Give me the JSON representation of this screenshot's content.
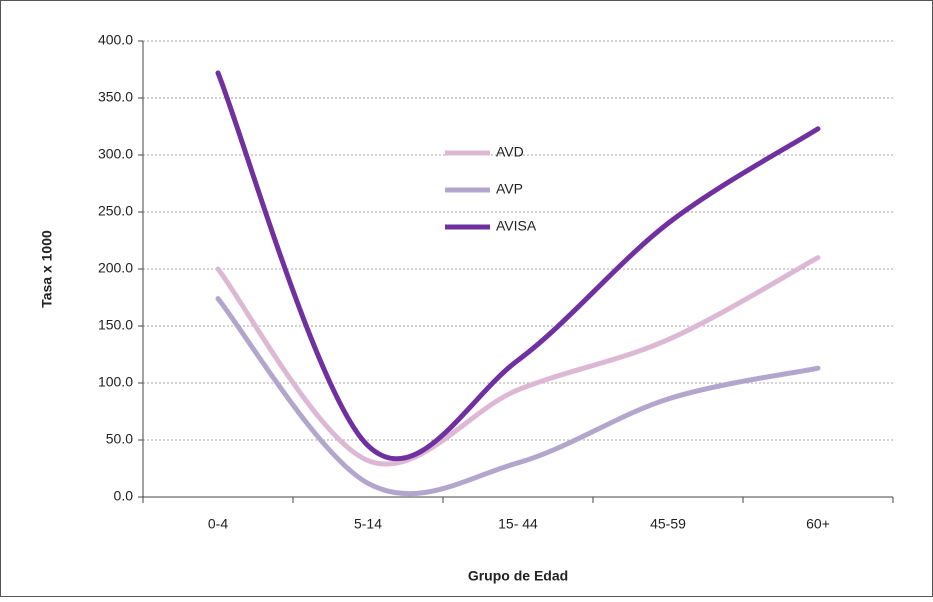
{
  "chart_data": {
    "type": "line",
    "x_label": "Grupo de Edad",
    "y_label": "Tasa x 1000",
    "categories": [
      "0-4",
      "5-14",
      "15- 44",
      "45-59",
      "60+"
    ],
    "series": [
      {
        "name": "AVD",
        "color": "#dcb8d4",
        "values": [
          200,
          32,
          94,
          138,
          210
        ]
      },
      {
        "name": "AVP",
        "color": "#b3a6cc",
        "values": [
          174,
          12,
          30,
          86,
          113
        ]
      },
      {
        "name": "AVISA",
        "color": "#7030a0",
        "values": [
          372,
          45,
          120,
          240,
          323
        ]
      }
    ],
    "ylim": [
      0,
      400
    ],
    "yticks": [
      {
        "value": 0,
        "label": "0.0"
      },
      {
        "value": 50,
        "label": "50.0"
      },
      {
        "value": 100,
        "label": "100.0"
      },
      {
        "value": 150,
        "label": "150.0"
      },
      {
        "value": 200,
        "label": "200.0"
      },
      {
        "value": 250,
        "label": "250.0"
      },
      {
        "value": 300,
        "label": "300.0"
      },
      {
        "value": 350,
        "label": "350.0"
      },
      {
        "value": 400,
        "label": "400.0"
      }
    ],
    "grid": true
  }
}
